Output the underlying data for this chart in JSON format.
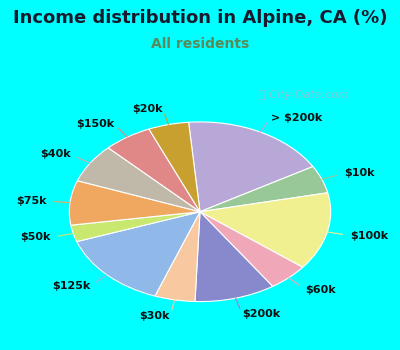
{
  "title": "Income distribution in Alpine, CA (%)",
  "subtitle": "All residents",
  "watermark": "Ⓜ City-Data.com",
  "bg_cyan": "#00FFFF",
  "chart_bg_colors": [
    "#e8f5f0",
    "#d0ede0"
  ],
  "title_color": "#1a1a2e",
  "subtitle_color": "#5a8a5a",
  "labels": [
    "> $200k",
    "$10k",
    "$100k",
    "$60k",
    "$200k",
    "$30k",
    "$125k",
    "$50k",
    "$75k",
    "$40k",
    "$150k",
    "$20k"
  ],
  "values": [
    18,
    5,
    14,
    5,
    10,
    5,
    14,
    3,
    8,
    7,
    6,
    5
  ],
  "colors": [
    "#b8a8d8",
    "#98c898",
    "#f0f090",
    "#f0a8b8",
    "#8888cc",
    "#f8c8a0",
    "#90b8e8",
    "#c8e870",
    "#f0a860",
    "#c0b8a8",
    "#e08888",
    "#c8a030"
  ],
  "startangle": 95,
  "title_fontsize": 13,
  "subtitle_fontsize": 10,
  "label_fontsize": 8
}
